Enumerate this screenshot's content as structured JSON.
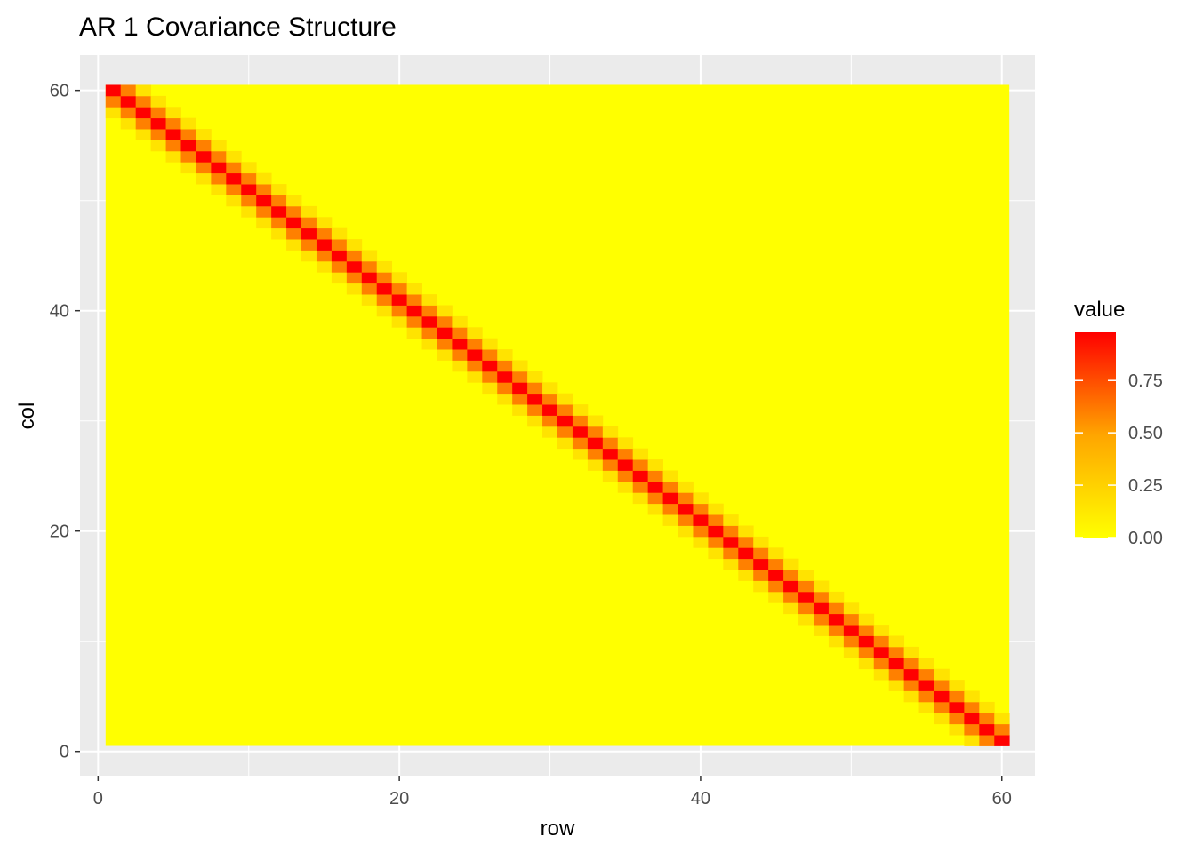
{
  "chart_data": {
    "type": "heatmap",
    "title": "AR 1 Covariance Structure",
    "xlabel": "row",
    "ylabel": "col",
    "x_ticks": [
      0,
      20,
      40,
      60
    ],
    "y_ticks": [
      0,
      20,
      40,
      60
    ],
    "xlim": [
      -1.2,
      62.2
    ],
    "ylim": [
      -2.2,
      63.2
    ],
    "grid": true,
    "panel_background": "#EBEBEB",
    "legend": {
      "title": "value",
      "position": "right",
      "ticks": [
        {
          "value": 0.0,
          "label": "0.00"
        },
        {
          "value": 0.25,
          "label": "0.25"
        },
        {
          "value": 0.5,
          "label": "0.50"
        },
        {
          "value": 0.75,
          "label": "0.75"
        }
      ],
      "range": [
        0,
        0.98
      ]
    },
    "color_scale": {
      "low": "#FFFF00",
      "mid": "#FFA500",
      "high": "#FF0000"
    },
    "grid_size": 60,
    "cell_value_by_offset": {
      "0": 0.98,
      "1": 0.6,
      "2": 0.15,
      "other": 0.0
    }
  }
}
